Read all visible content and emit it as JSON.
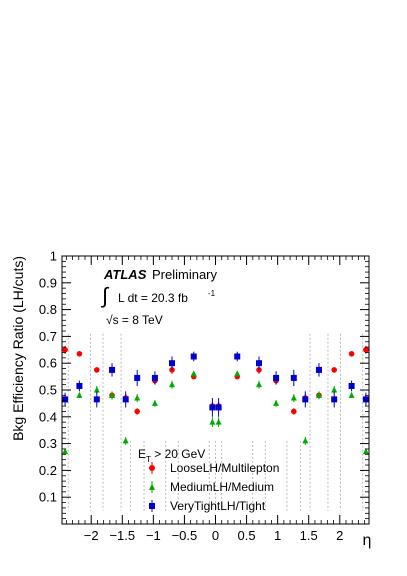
{
  "chart_data": {
    "type": "scatter",
    "title": "",
    "xlabel": "η",
    "ylabel": "Bkg Efficiency Ratio (LH/cuts)",
    "xlim": [
      -2.47,
      2.47
    ],
    "ylim": [
      0,
      1
    ],
    "x_ticks": [
      {
        "value": -2,
        "label": "−2"
      },
      {
        "value": -1.5,
        "label": "−1.5"
      },
      {
        "value": -1,
        "label": "−1"
      },
      {
        "value": -0.5,
        "label": "−0.5"
      },
      {
        "value": 0,
        "label": "0"
      },
      {
        "value": 0.5,
        "label": "0.5"
      },
      {
        "value": 1,
        "label": "1"
      },
      {
        "value": 1.5,
        "label": "1.5"
      },
      {
        "value": 2,
        "label": "2"
      }
    ],
    "y_ticks": [
      {
        "value": 0.1,
        "label": "0.1"
      },
      {
        "value": 0.2,
        "label": "0.2"
      },
      {
        "value": 0.3,
        "label": "0.3"
      },
      {
        "value": 0.4,
        "label": "0.4"
      },
      {
        "value": 0.5,
        "label": "0.5"
      },
      {
        "value": 0.6,
        "label": "0.6"
      },
      {
        "value": 0.7,
        "label": "0.7"
      },
      {
        "value": 0.8,
        "label": "0.8"
      },
      {
        "value": 0.9,
        "label": "0.9"
      },
      {
        "value": 1,
        "label": "1"
      }
    ],
    "bin_edges": [
      -2.47,
      -2.37,
      -2.01,
      -1.81,
      -1.52,
      -1.37,
      -1.15,
      -0.8,
      -0.6,
      -0.1,
      0,
      0.1,
      0.6,
      0.8,
      1.15,
      1.37,
      1.52,
      1.81,
      2.01,
      2.37,
      2.47
    ],
    "grid": false,
    "annotations": {
      "atlas": "ATLAS",
      "preliminary": "Preliminary",
      "lumi_integral": "∫",
      "lumi_text": "L dt = 20.3 fb",
      "lumi_sup": "-1",
      "energy": "√s = 8 TeV"
    },
    "legend": {
      "placement": "bottom-center",
      "header_main": "E",
      "header_sub": "T",
      "header_rest": " > 20 GeV"
    },
    "series": [
      {
        "name": "LooseLH/Multilepton",
        "color": "#ff0000",
        "marker": "circle",
        "x": [
          -2.42,
          -2.19,
          -1.91,
          -1.665,
          -1.445,
          -1.26,
          -0.975,
          -0.7,
          -0.35,
          -0.05,
          0.05,
          0.35,
          0.7,
          0.975,
          1.26,
          1.445,
          1.665,
          1.91,
          2.19,
          2.42
        ],
        "y": [
          0.65,
          0.635,
          0.575,
          0.48,
          0.47,
          0.42,
          0.535,
          0.575,
          0.55,
          0.44,
          0.44,
          0.55,
          0.575,
          0.535,
          0.42,
          0.47,
          0.48,
          0.575,
          0.635,
          0.65
        ],
        "err": [
          0.015,
          0.008,
          0.01,
          0.012,
          0.015,
          0.012,
          0.01,
          0.015,
          0.01,
          0.015,
          0.015,
          0.01,
          0.015,
          0.01,
          0.012,
          0.015,
          0.012,
          0.01,
          0.008,
          0.015
        ]
      },
      {
        "name": "MediumLH/Medium",
        "color": "#00aa00",
        "marker": "triangle",
        "x": [
          -2.42,
          -2.19,
          -1.91,
          -1.665,
          -1.445,
          -1.26,
          -0.975,
          -0.7,
          -0.35,
          -0.05,
          0.05,
          0.35,
          0.7,
          0.975,
          1.26,
          1.445,
          1.665,
          1.91,
          2.19,
          2.42
        ],
        "y": [
          0.27,
          0.48,
          0.5,
          0.48,
          0.31,
          0.47,
          0.45,
          0.52,
          0.56,
          0.38,
          0.38,
          0.56,
          0.52,
          0.45,
          0.47,
          0.31,
          0.48,
          0.5,
          0.48,
          0.27
        ],
        "err": [
          0.012,
          0.01,
          0.015,
          0.015,
          0.015,
          0.015,
          0.012,
          0.015,
          0.01,
          0.018,
          0.018,
          0.01,
          0.015,
          0.012,
          0.015,
          0.015,
          0.015,
          0.015,
          0.01,
          0.012
        ]
      },
      {
        "name": "VeryTightLH/Tight",
        "color": "#0000cc",
        "marker": "square",
        "x": [
          -2.42,
          -2.19,
          -1.91,
          -1.665,
          -1.445,
          -1.26,
          -0.975,
          -0.7,
          -0.35,
          -0.05,
          0.05,
          0.35,
          0.7,
          0.975,
          1.26,
          1.445,
          1.665,
          1.91,
          2.19,
          2.42
        ],
        "y": [
          0.465,
          0.515,
          0.465,
          0.575,
          0.465,
          0.545,
          0.545,
          0.6,
          0.625,
          0.435,
          0.435,
          0.625,
          0.6,
          0.545,
          0.545,
          0.465,
          0.575,
          0.465,
          0.515,
          0.465
        ],
        "err": [
          0.025,
          0.02,
          0.03,
          0.025,
          0.03,
          0.03,
          0.025,
          0.025,
          0.018,
          0.035,
          0.035,
          0.018,
          0.025,
          0.025,
          0.03,
          0.03,
          0.025,
          0.03,
          0.02,
          0.025
        ]
      }
    ]
  }
}
